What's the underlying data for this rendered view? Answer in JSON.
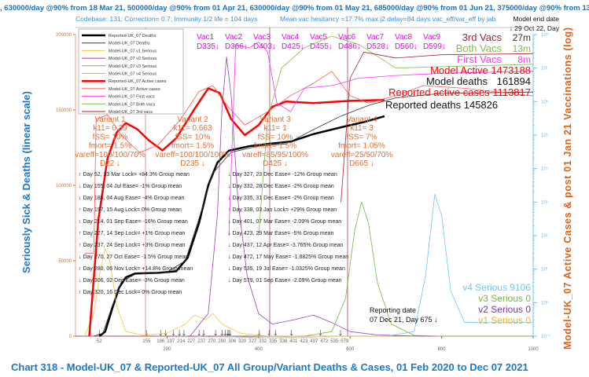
{
  "header": {
    "top_line": ", 630000/day @90% from 18 Mar 21, 500000/day @90% from 01 Apr 21, 630000/day @90% from 01 May 21, 685000/day @90% from 01 Jun 21, 375000/day @90% from 13 Ju",
    "codebase_line": "Codebase: 131; Correction= 0.7; Immunity 1/2 life = 104 days",
    "hesitancy_line": "Mean vac hesitancy =17.7% max j2 delay=84 days vac_eff/var_eff by jab",
    "model_end_label": "Model end date",
    "model_end_date": "↓ 29 Oct 22, Day"
  },
  "chart_data": {
    "type": "line",
    "title": "Chart 318 - Model-UK_07 & Reported-UK_07 All Group/Variant Deaths & Cases, 01 Feb 2020 to Dec 07 2021",
    "ylabel": "Seriously Sick & Deaths (linear scale)",
    "y2label": "Model-UK_07 Active Cases & post 01 Jan 21 Vaccinations (log)",
    "xlim": [
      0,
      1000
    ],
    "ylim": [
      0,
      200000
    ],
    "y2lim": [
      0.1,
      100000000
    ],
    "y2scale": "log",
    "x_ticks": [
      200,
      400,
      600,
      800,
      1000
    ],
    "y_ticks": [
      "0",
      "50000",
      "100000",
      "150000",
      "200000"
    ],
    "y2_ticks": [
      "10⁻¹",
      "10⁰",
      "10¹",
      "10²",
      "10³",
      "10⁴",
      "10⁵",
      "10⁶",
      "10⁷",
      "10⁸"
    ],
    "y2_tick_values": [
      0.1,
      1,
      10,
      100,
      1000,
      10000,
      100000,
      1000000,
      10000000,
      100000000
    ],
    "event_days": [
      52,
      155,
      186,
      197,
      214,
      227,
      237,
      270,
      280,
      306,
      320,
      327,
      332,
      335,
      338,
      401,
      423,
      437,
      472,
      535,
      579
    ],
    "legend": {
      "placement": "top-left",
      "entries": [
        {
          "name": "Reported-UK_07 Deaths",
          "color": "#000000"
        },
        {
          "name": "Model-UK_07 Deaths",
          "color": "#333333"
        },
        {
          "name": "Model-UK_07 v1 Serious",
          "color": "#f5c842"
        },
        {
          "name": "Model-UK_07 v2 Serious",
          "color": "#9b40b0"
        },
        {
          "name": "Model-UK_07 v3 Serious",
          "color": "#7ab840"
        },
        {
          "name": "Model-UK_07 v4 Serious",
          "color": "#6bc8f0"
        },
        {
          "name": "Reported-UK_07 Active cases",
          "color": "#ff0000"
        },
        {
          "name": "Model-UK_07 Active cases",
          "color": "#ff5555"
        },
        {
          "name": "Model-UK_07 First vacs",
          "color": "#ff33ff"
        },
        {
          "name": "Model-UK_07 Both vacs",
          "color": "#88bb44"
        },
        {
          "name": "Model-UK_07 3rd vacs",
          "color": "#aa2233"
        }
      ]
    },
    "series": [
      {
        "name": "Reported-UK_07 Deaths",
        "axis": "left",
        "color": "#000000",
        "width": 2.5,
        "points": [
          [
            52,
            0
          ],
          [
            65,
            3000
          ],
          [
            80,
            18000
          ],
          [
            95,
            32000
          ],
          [
            110,
            39000
          ],
          [
            130,
            41500
          ],
          [
            180,
            42000
          ],
          [
            220,
            43000
          ],
          [
            245,
            52000
          ],
          [
            270,
            75000
          ],
          [
            290,
            100000
          ],
          [
            310,
            115000
          ],
          [
            335,
            123000
          ],
          [
            380,
            126000
          ],
          [
            420,
            127500
          ],
          [
            470,
            129000
          ],
          [
            520,
            134000
          ],
          [
            580,
            138500
          ],
          [
            630,
            142000
          ],
          [
            675,
            145826
          ]
        ]
      },
      {
        "name": "Model-UK_07 Deaths",
        "axis": "left",
        "color": "#333333",
        "width": 0.8,
        "points": [
          [
            40,
            0
          ],
          [
            60,
            2000
          ],
          [
            80,
            20000
          ],
          [
            100,
            36000
          ],
          [
            130,
            41000
          ],
          [
            200,
            42500
          ],
          [
            240,
            50000
          ],
          [
            270,
            78000
          ],
          [
            300,
            108000
          ],
          [
            340,
            122000
          ],
          [
            400,
            126000
          ],
          [
            460,
            127500
          ],
          [
            520,
            137000
          ],
          [
            580,
            146000
          ],
          [
            640,
            153000
          ],
          [
            700,
            158000
          ],
          [
            800,
            161000
          ],
          [
            1000,
            161894
          ]
        ]
      },
      {
        "name": "Model-UK_07 v1 Serious",
        "axis": "left",
        "color": "#f5c842",
        "width": 0.8,
        "points": [
          [
            20,
            0
          ],
          [
            40,
            15000
          ],
          [
            55,
            45000
          ],
          [
            65,
            58000
          ],
          [
            75,
            50000
          ],
          [
            90,
            20000
          ],
          [
            110,
            3000
          ],
          [
            150,
            500
          ],
          [
            200,
            2000
          ],
          [
            240,
            8000
          ],
          [
            260,
            14000
          ],
          [
            285,
            11000
          ],
          [
            300,
            15000
          ],
          [
            320,
            8000
          ],
          [
            360,
            2000
          ],
          [
            420,
            0
          ],
          [
            1000,
            0
          ]
        ]
      },
      {
        "name": "Model-UK_07 v2 Serious",
        "axis": "left",
        "color": "#9b40b0",
        "width": 0.8,
        "points": [
          [
            250,
            0
          ],
          [
            290,
            15000
          ],
          [
            310,
            80000
          ],
          [
            320,
            150000
          ],
          [
            330,
            185000
          ],
          [
            340,
            160000
          ],
          [
            355,
            90000
          ],
          [
            375,
            40000
          ],
          [
            400,
            15000
          ],
          [
            430,
            8000
          ],
          [
            480,
            11000
          ],
          [
            520,
            14000
          ],
          [
            560,
            9000
          ],
          [
            600,
            3000
          ],
          [
            660,
            800
          ],
          [
            750,
            0
          ],
          [
            1000,
            0
          ]
        ]
      },
      {
        "name": "Model-UK_07 v3 Serious",
        "axis": "left",
        "color": "#7ab840",
        "width": 0.8,
        "points": [
          [
            500,
            0
          ],
          [
            560,
            3000
          ],
          [
            590,
            25000
          ],
          [
            610,
            70000
          ],
          [
            625,
            89000
          ],
          [
            640,
            75000
          ],
          [
            660,
            35000
          ],
          [
            690,
            8000
          ],
          [
            740,
            500
          ],
          [
            800,
            0
          ],
          [
            1000,
            0
          ]
        ]
      },
      {
        "name": "Model-UK_07 v4 Serious",
        "axis": "left",
        "color": "#6bc8f0",
        "width": 0.8,
        "points": [
          [
            680,
            0
          ],
          [
            740,
            3000
          ],
          [
            765,
            40000
          ],
          [
            785,
            94000
          ],
          [
            800,
            80000
          ],
          [
            820,
            30000
          ],
          [
            850,
            9106
          ],
          [
            900,
            9106
          ],
          [
            1000,
            9106
          ]
        ]
      },
      {
        "name": "Reported-UK_07 Active cases",
        "axis": "right",
        "color": "#ff0000",
        "width": 2.5,
        "points": [
          [
            30,
            0.1
          ],
          [
            50,
            300
          ],
          [
            70,
            20000
          ],
          [
            90,
            120000
          ],
          [
            110,
            230000
          ],
          [
            135,
            150000
          ],
          [
            160,
            70000
          ],
          [
            190,
            35000
          ],
          [
            220,
            80000
          ],
          [
            260,
            600000
          ],
          [
            290,
            2500000
          ],
          [
            315,
            1800000
          ],
          [
            340,
            300000
          ],
          [
            370,
            100000
          ],
          [
            400,
            200000
          ],
          [
            430,
            700000
          ],
          [
            460,
            1000000
          ],
          [
            520,
            900000
          ],
          [
            600,
            1050000
          ],
          [
            675,
            1113817
          ]
        ]
      },
      {
        "name": "Model-UK_07 Active cases",
        "axis": "right",
        "color": "#ff5555",
        "width": 0.8,
        "points": [
          [
            20,
            30
          ],
          [
            40,
            30
          ],
          [
            45,
            300000
          ],
          [
            70,
            400000
          ],
          [
            100,
            100000
          ],
          [
            140,
            30000
          ],
          [
            180,
            50000
          ],
          [
            230,
            300000
          ],
          [
            270,
            2000000
          ],
          [
            300,
            3000000
          ],
          [
            330,
            800000
          ],
          [
            370,
            200000
          ],
          [
            420,
            500000
          ],
          [
            470,
            1500000
          ],
          [
            520,
            3500000
          ],
          [
            560,
            8000000
          ],
          [
            600,
            1500000
          ],
          [
            640,
            900000
          ],
          [
            700,
            1500000
          ],
          [
            760,
            3000000
          ],
          [
            850,
            2500000
          ],
          [
            1000,
            1473188
          ]
        ]
      },
      {
        "name": "Model-UK_07 First vacs",
        "axis": "right",
        "color": "#ff33ff",
        "width": 0.8,
        "points": [
          [
            335,
            100
          ],
          [
            350,
            50000000
          ],
          [
            380,
            40000000
          ],
          [
            400,
            60000000
          ],
          [
            420,
            30000000
          ],
          [
            440,
            900000
          ],
          [
            470,
            500000
          ],
          [
            500,
            2500000
          ],
          [
            560,
            3000000
          ],
          [
            620,
            5000000
          ],
          [
            700,
            6000000
          ],
          [
            800,
            7000000
          ],
          [
            1000,
            8000000
          ]
        ]
      },
      {
        "name": "Model-UK_07 Both vacs",
        "axis": "right",
        "color": "#88bb44",
        "width": 0.8,
        "points": [
          [
            400,
            100
          ],
          [
            420,
            300000
          ],
          [
            450,
            10000000
          ],
          [
            500,
            40000000
          ],
          [
            560,
            90000000
          ],
          [
            620,
            50000000
          ],
          [
            700,
            10000000
          ],
          [
            800,
            11000000
          ],
          [
            1000,
            13000000
          ]
        ]
      },
      {
        "name": "Model-UK_07 3rd vacs",
        "axis": "right",
        "color": "#aa2233",
        "width": 0.8,
        "points": [
          [
            580,
            1000
          ],
          [
            600,
            5000000
          ],
          [
            630,
            30000000
          ],
          [
            700,
            20000000
          ],
          [
            800,
            25000000
          ],
          [
            1000,
            27000000
          ]
        ]
      }
    ],
    "end_labels": {
      "third_vacs": "3rd Vacs",
      "both_vacs": "Both Vacs",
      "first_vacs": "First Vacs",
      "third_count": "27m",
      "both_count": "13m",
      "first_count": "8m",
      "model_active": "Model Active 1473188",
      "model_deaths": "Model deaths",
      "model_deaths_value": "161894",
      "reported_active": "Reported active cases 1113817",
      "reported_deaths": "Reported deaths 145826",
      "v4": "v4 Serious 9106",
      "v3": "v3 Serious 0",
      "v2": "v2 Serious 0",
      "v1": "v1 Serious 0"
    },
    "reporting": {
      "label": "Reporting date",
      "date": "07 Dec 21, Day 675 ↓"
    },
    "variants": [
      {
        "title": "Variant 1",
        "k11": "k11= 0.39",
        "fss": "fSS= 10%",
        "fmort": "fmort= 1.5%",
        "vareff": "vareff=100/100/70%",
        "day": "D22 ↓"
      },
      {
        "title": "Variant 2",
        "k11": "k11= 0.663",
        "fss": "fSS= 10%",
        "fmort": "fmort= 1.5%",
        "vareff": "vareff=100/100/100%",
        "day": "D235 ↓"
      },
      {
        "title": "Variant 3",
        "k11": "k11= 1",
        "fss": "fSS= 10%",
        "fmort": "fmort= 1.5%",
        "vareff": "vareff=85/95/100%",
        "day": "D425 ↓"
      },
      {
        "title": "Variant 4",
        "k11": "k11= 3",
        "fss": "fSS= 7%",
        "fmort": "fmort= 1.05%",
        "vareff": "vareff=25/50/70%",
        "day": "D665 ↓"
      }
    ],
    "vaccines": [
      {
        "name": "Vac1",
        "day": "D335↓"
      },
      {
        "name": "Vac2",
        "day": "D366↓"
      },
      {
        "name": "Vac3",
        "day": "D403↓"
      },
      {
        "name": "Vac4",
        "day": "D425↓"
      },
      {
        "name": "Vac5",
        "day": "D455↓"
      },
      {
        "name": "Vac6",
        "day": "D486↓"
      },
      {
        "name": "Vac7",
        "day": "D528↓"
      },
      {
        "name": "Vac8",
        "day": "D560↓"
      },
      {
        "name": "Vac9",
        "day": "D599↓"
      }
    ],
    "annotations": [
      "↑ Day 52, 23 Mar Lock= +84.3% Group mean",
      "↓ Day 155, 04 Jul Ease= -1% Group mean",
      "↓ Day 186, 04 Aug Ease= -4% Group mean",
      "↑ Day 197, 15 Aug Lock= 0% Group mean",
      "↓ Day 214, 01 Sep Ease= -16% Group mean",
      "↑ Day 227, 14 Sep Lock= +1% Group mean",
      "↑ Day 237, 24 Sep Lock= +3% Group mean",
      "↓ Day 270, 27 Oct Ease= -1.5% Group mean",
      "↑ Day 280, 06 Nov Lock= +14.8% Group mean",
      "↓ Day 306, 02 Dec Ease= -3% Group mean",
      "↑ Day 320, 16 Dec Lock= 0% Group mean",
      "↓ Day 327, 23 Dec Ease= -12% Group mean",
      "↓ Day 332, 28 Dec Ease= -2% Group mean",
      "↓ Day 335, 31 Dec Ease= -2% Group mean",
      "↑ Day 338, 03 Jan Lock= +29% Group mean",
      "↓ Day 401, 07 Mar Ease= -2.09% Group mean",
      "↓ Day 423, 29 Mar Ease= -5% Group mean",
      "↓ Day 437, 12 Apr Ease= -3.765% Group mean",
      "↓ Day 472, 17 May Ease= -1.8825% Group mean",
      "↓ Day 535, 19 Jul Ease= -1.0325% Group mean",
      "↓ Day 579, 01 Sep Ease= -2.09% Group mean"
    ]
  }
}
